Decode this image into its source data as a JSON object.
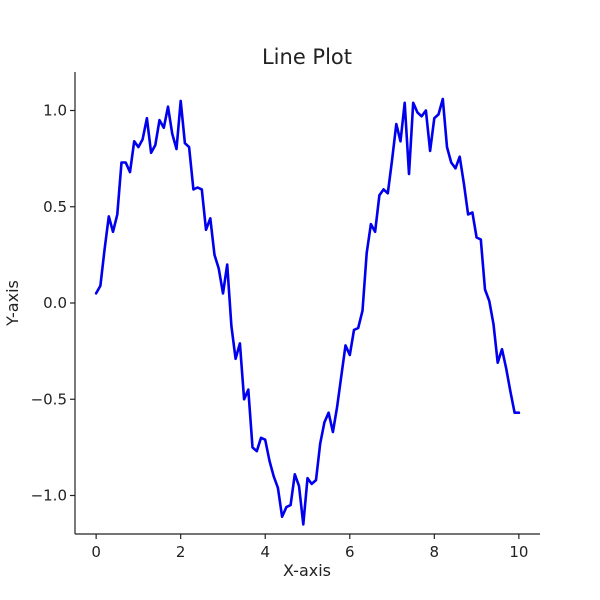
{
  "chart_data": {
    "type": "line",
    "title": "Line Plot",
    "xlabel": "X-axis",
    "ylabel": "Y-axis",
    "xlim": [
      -0.5,
      10.5
    ],
    "ylim": [
      -1.2,
      1.2
    ],
    "x_ticks": [
      0,
      2,
      4,
      6,
      8,
      10
    ],
    "x_tick_labels": [
      "0",
      "2",
      "4",
      "6",
      "8",
      "10"
    ],
    "y_ticks": [
      1.0,
      0.5,
      0.0,
      -0.5,
      -1.0
    ],
    "y_tick_labels": [
      "1.0",
      "0.5",
      "0.0",
      "−0.5",
      "−1.0"
    ],
    "grid": false,
    "legend": false,
    "spines": "left-bottom",
    "series": [
      {
        "color": "#0000ee",
        "x": [
          0.0,
          0.1,
          0.2,
          0.3,
          0.4,
          0.5,
          0.6,
          0.7,
          0.8,
          0.9,
          1.0,
          1.1,
          1.2,
          1.3,
          1.4,
          1.5,
          1.6,
          1.7,
          1.8,
          1.9,
          2.0,
          2.1,
          2.2,
          2.3,
          2.4,
          2.5,
          2.6,
          2.7,
          2.8,
          2.9,
          3.0,
          3.1,
          3.2,
          3.3,
          3.4,
          3.5,
          3.6,
          3.7,
          3.8,
          3.9,
          4.0,
          4.1,
          4.2,
          4.3,
          4.4,
          4.5,
          4.6,
          4.7,
          4.8,
          4.9,
          5.0,
          5.1,
          5.2,
          5.3,
          5.4,
          5.5,
          5.6,
          5.7,
          5.8,
          5.9,
          6.0,
          6.1,
          6.2,
          6.3,
          6.4,
          6.5,
          6.6,
          6.7,
          6.8,
          6.9,
          7.0,
          7.1,
          7.2,
          7.3,
          7.4,
          7.5,
          7.6,
          7.7,
          7.8,
          7.9,
          8.0,
          8.1,
          8.2,
          8.3,
          8.4,
          8.5,
          8.6,
          8.7,
          8.8,
          8.9,
          9.0,
          9.1,
          9.2,
          9.3,
          9.4,
          9.5,
          9.6,
          9.7,
          9.8,
          9.9,
          10.0
        ],
        "y": [
          0.05,
          0.09,
          0.28,
          0.45,
          0.37,
          0.46,
          0.73,
          0.73,
          0.68,
          0.84,
          0.81,
          0.85,
          0.96,
          0.78,
          0.82,
          0.95,
          0.91,
          1.02,
          0.88,
          0.8,
          1.05,
          0.83,
          0.81,
          0.59,
          0.6,
          0.59,
          0.38,
          0.44,
          0.25,
          0.18,
          0.05,
          0.2,
          -0.12,
          -0.29,
          -0.21,
          -0.5,
          -0.45,
          -0.75,
          -0.77,
          -0.7,
          -0.71,
          -0.82,
          -0.9,
          -0.96,
          -1.11,
          -1.06,
          -1.05,
          -0.89,
          -0.95,
          -1.15,
          -0.91,
          -0.94,
          -0.92,
          -0.73,
          -0.62,
          -0.57,
          -0.67,
          -0.54,
          -0.38,
          -0.22,
          -0.27,
          -0.14,
          -0.13,
          -0.04,
          0.26,
          0.41,
          0.37,
          0.56,
          0.59,
          0.57,
          0.74,
          0.93,
          0.84,
          1.04,
          0.67,
          1.04,
          0.99,
          0.97,
          1.0,
          0.79,
          0.96,
          0.98,
          1.06,
          0.81,
          0.73,
          0.7,
          0.76,
          0.62,
          0.46,
          0.47,
          0.34,
          0.33,
          0.07,
          0.01,
          -0.11,
          -0.31,
          -0.24,
          -0.34,
          -0.46,
          -0.57,
          -0.57
        ]
      }
    ]
  }
}
